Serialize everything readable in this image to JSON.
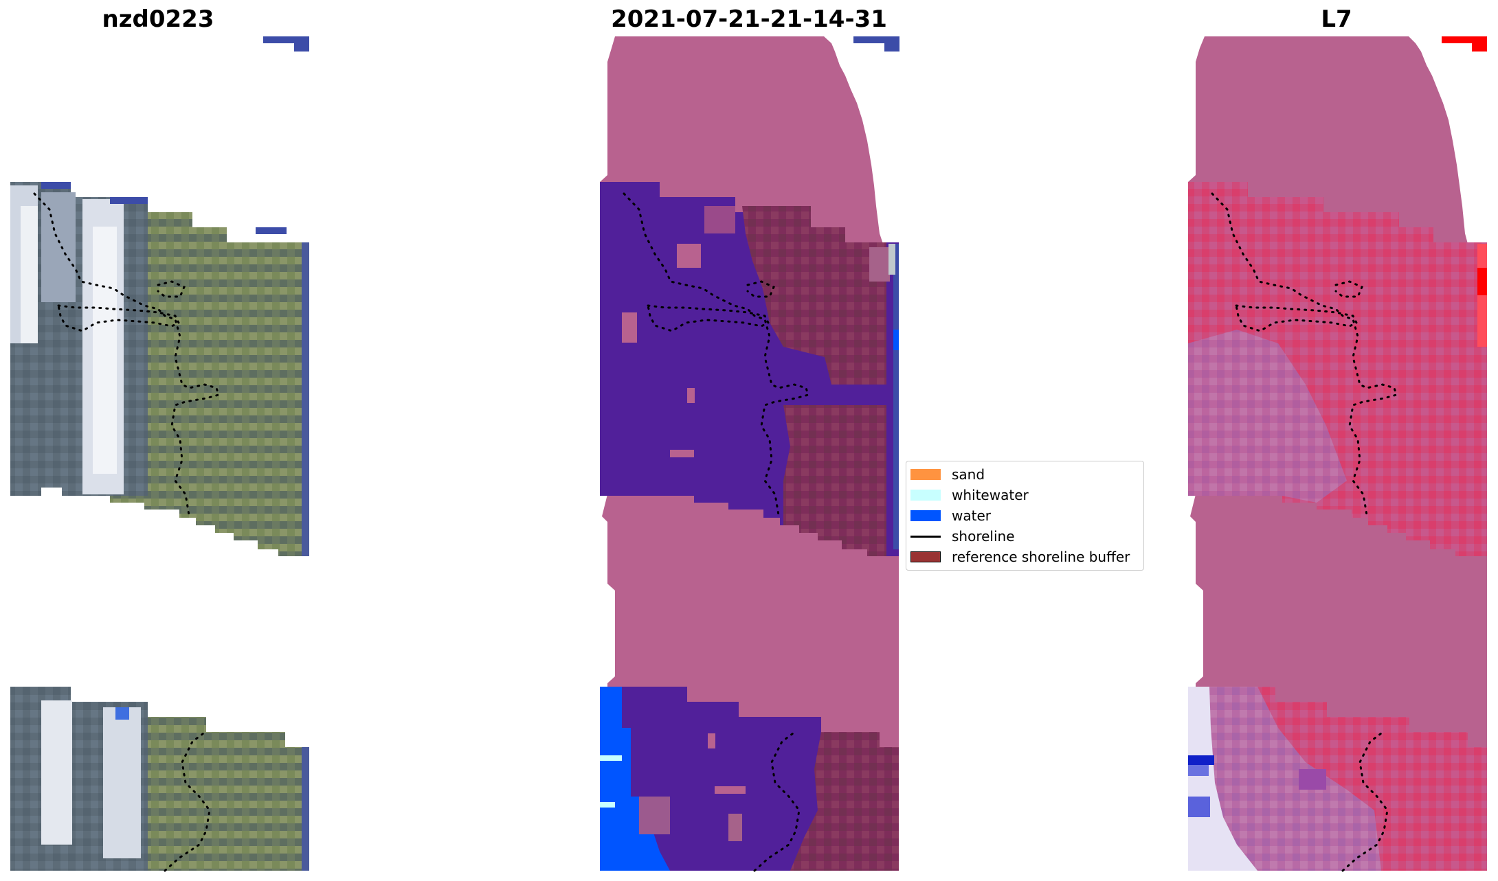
{
  "titles": {
    "left": "nzd0223",
    "center": "2021-07-21-21-14-31",
    "right": "L7"
  },
  "legend": {
    "items": [
      {
        "label": "sand",
        "kind": "swatch",
        "color": "#ff9340"
      },
      {
        "label": "whitewater",
        "kind": "swatch",
        "color": "#c8ffff"
      },
      {
        "label": "water",
        "kind": "swatch",
        "color": "#0055ff"
      },
      {
        "label": "shoreline",
        "kind": "line",
        "color": "#000000"
      },
      {
        "label": "reference shoreline buffer",
        "kind": "swatch",
        "color": "#993333"
      }
    ]
  },
  "colors": {
    "rgb_land": "#6f7e5e",
    "rgb_water": "#61707c",
    "rgb_surf": "#dfe4ec",
    "nodata_blue": "#3c4ca8",
    "class_mask": "#b8628f",
    "class_water_purple": "#51209a",
    "class_buffer": "#7e2d5a",
    "class_water_blue": "#0055ff",
    "mndwi_pink": "#d14c78",
    "mndwi_mask": "#b8628f",
    "mndwi_red": "#ff0000"
  }
}
